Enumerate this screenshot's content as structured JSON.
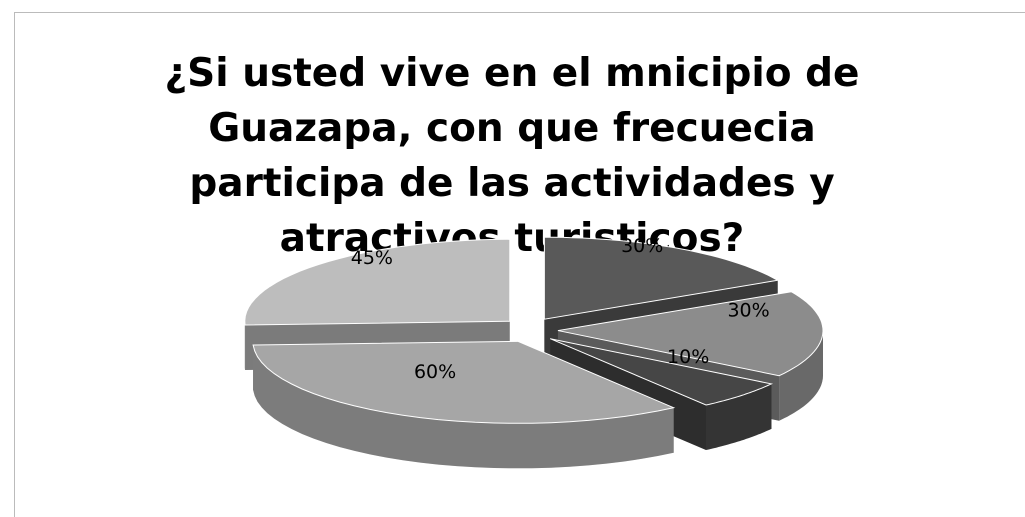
{
  "chart_data": {
    "type": "pie3d",
    "title": "¿Si usted vive en el mnicipio de Guazapa, con que frecuecia participa de las actividades y atractivos turisticos?",
    "categories": [
      null,
      null,
      null,
      null,
      null
    ],
    "values": [
      30,
      30,
      10,
      60,
      45
    ],
    "value_labels": [
      "30%",
      "30%",
      "10%",
      "60%",
      "45%"
    ],
    "colors": [
      "#595959",
      "#8c8c8c",
      "#464646",
      "#a6a6a6",
      "#bdbdbd"
    ]
  }
}
